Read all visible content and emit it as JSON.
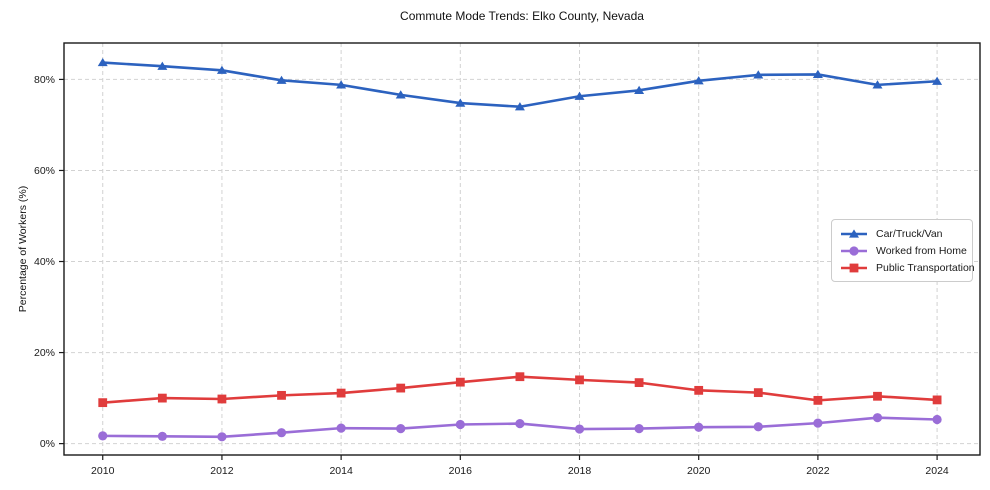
{
  "chart_data": {
    "type": "line",
    "title": "Commute Mode Trends: Elko County, Nevada",
    "xlabel": "",
    "ylabel": "Percentage of Workers (%)",
    "x": [
      2010,
      2011,
      2012,
      2013,
      2014,
      2015,
      2016,
      2017,
      2018,
      2019,
      2020,
      2021,
      2022,
      2023,
      2024
    ],
    "series": [
      {
        "name": "Car/Truck/Van",
        "color": "#2c62bf",
        "marker": "triangle",
        "values": [
          83.7,
          82.9,
          82.0,
          79.8,
          78.8,
          76.6,
          74.8,
          74.0,
          76.3,
          77.6,
          79.7,
          81.0,
          81.1,
          78.8,
          79.6
        ]
      },
      {
        "name": "Worked from Home",
        "color": "#9a6dd7",
        "marker": "circle",
        "values": [
          1.7,
          1.6,
          1.5,
          2.4,
          3.4,
          3.3,
          4.2,
          4.4,
          3.2,
          3.3,
          3.6,
          3.7,
          4.5,
          5.7,
          5.3
        ]
      },
      {
        "name": "Public Transportation",
        "color": "#e03c3c",
        "marker": "square",
        "values": [
          9.0,
          10.0,
          9.8,
          10.6,
          11.1,
          12.2,
          13.5,
          14.7,
          14.0,
          13.4,
          11.7,
          11.2,
          9.5,
          10.4,
          9.6
        ]
      }
    ],
    "xticks": {
      "values": [
        2010,
        2012,
        2014,
        2016,
        2018,
        2020,
        2022,
        2024
      ],
      "labels": [
        "2010",
        "2012",
        "2014",
        "2016",
        "2018",
        "2020",
        "2022",
        "2024"
      ]
    },
    "yticks": {
      "values": [
        0,
        20,
        40,
        60,
        80
      ],
      "labels": [
        "0%",
        "20%",
        "40%",
        "60%",
        "80%"
      ]
    },
    "xlim": [
      2009.35,
      2024.72
    ],
    "ylim": [
      -2.5,
      88
    ],
    "grid": "dashed",
    "legend_position": "center right"
  },
  "colors": {
    "grid": "#d2d2d2",
    "spine": "#1a1a1a",
    "tick_text": "#1a1a1a",
    "background": "#ffffff"
  }
}
